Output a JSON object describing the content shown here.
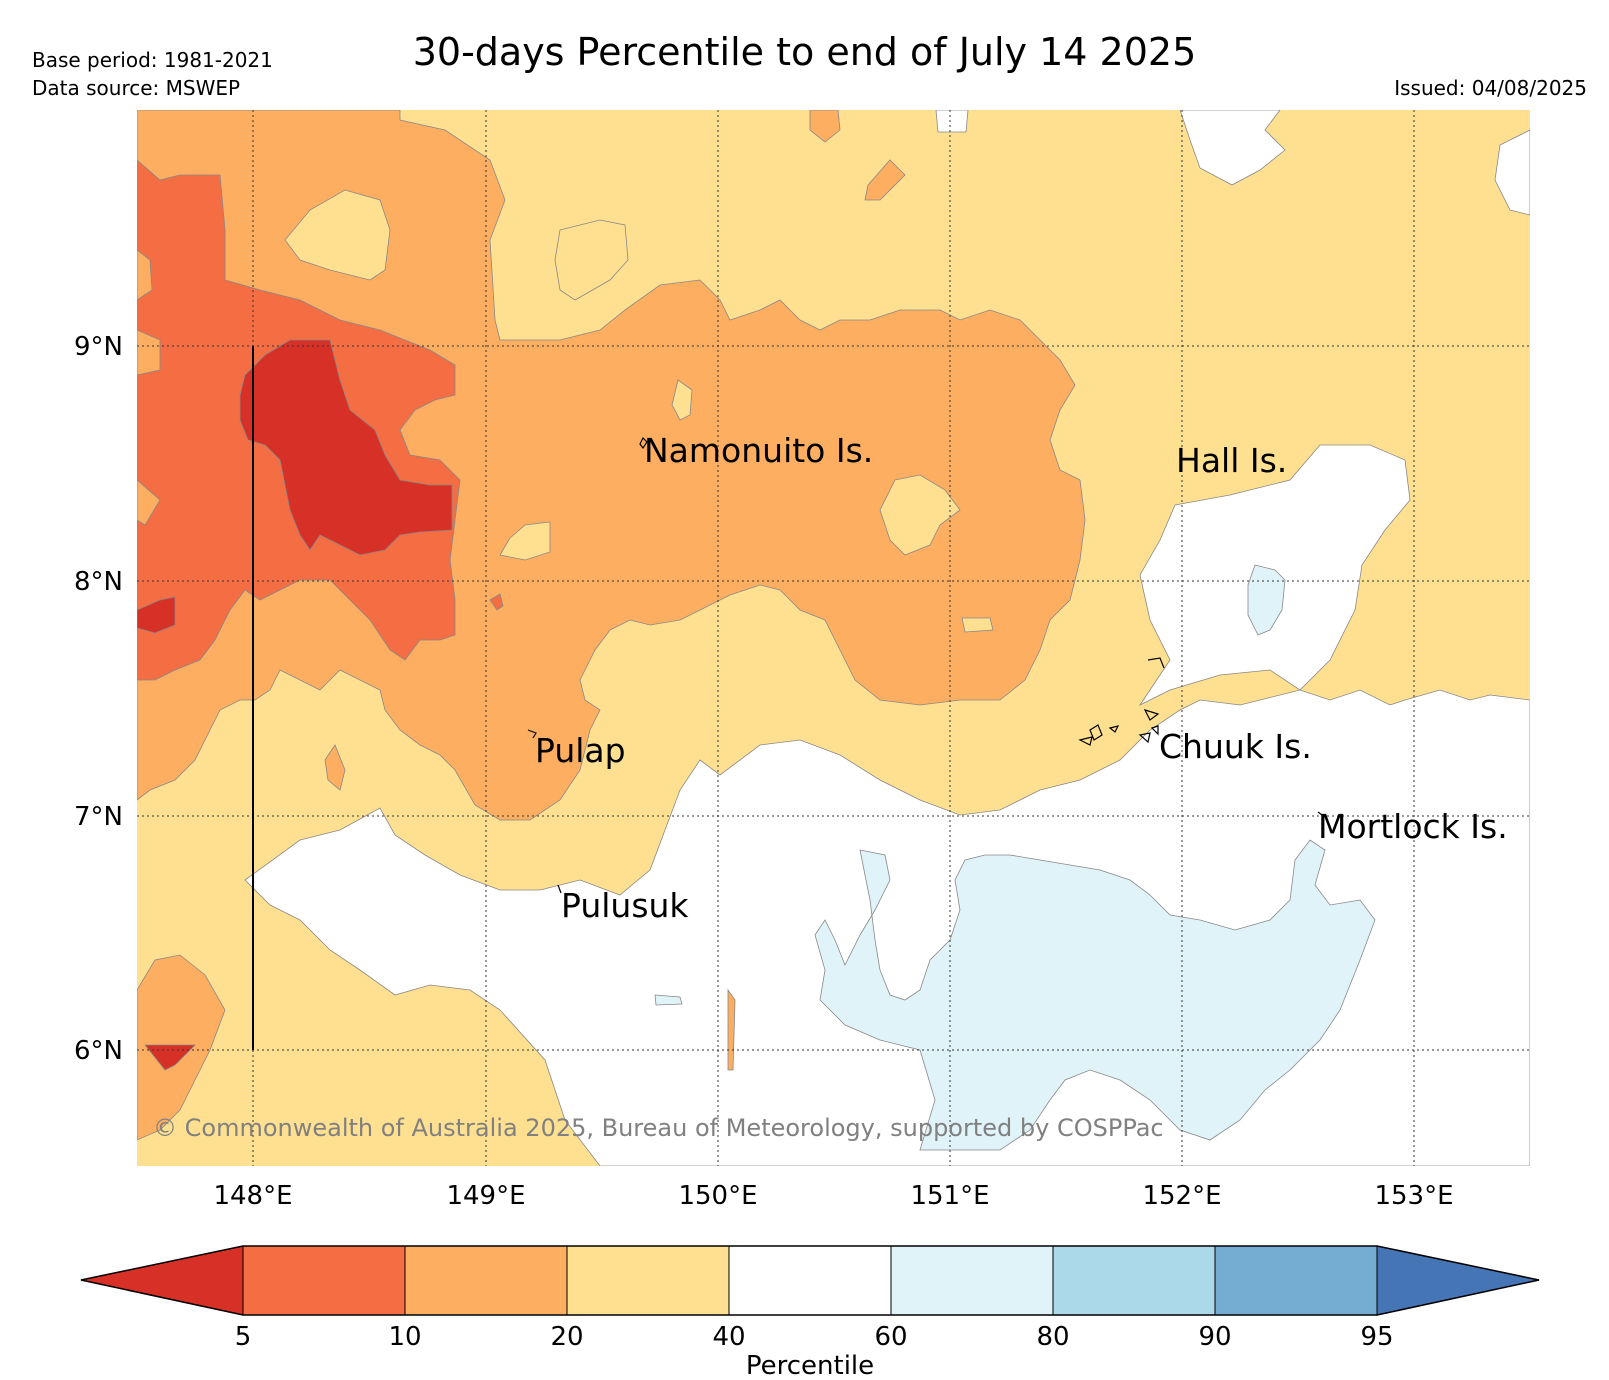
{
  "header": {
    "title": "30-days Percentile to end of July 14 2025",
    "base_period": "Base period: 1981-2021",
    "data_source": "Data source: MSWEP",
    "issued": "Issued: 04/08/2025"
  },
  "map": {
    "lon_range": [
      147.5,
      153.5
    ],
    "lat_range": [
      5.5,
      10.0
    ],
    "lon_ticks": [
      "148°E",
      "149°E",
      "150°E",
      "151°E",
      "152°E",
      "153°E"
    ],
    "lat_ticks": [
      "9°N",
      "8°N",
      "7°N",
      "6°N"
    ],
    "gridlines": true,
    "places": [
      {
        "name": "Namonuito Is.",
        "lon": 149.67,
        "lat": 8.6
      },
      {
        "name": "Hall Is.",
        "lon": 151.97,
        "lat": 8.55
      },
      {
        "name": "Pulap",
        "lon": 149.2,
        "lat": 7.3
      },
      {
        "name": "Chuuk Is.",
        "lon": 151.85,
        "lat": 7.35
      },
      {
        "name": "Mortlock Is.",
        "lon": 152.6,
        "lat": 6.95
      },
      {
        "name": "Pulusuk",
        "lon": 149.32,
        "lat": 6.65
      }
    ],
    "copyright": "© Commonwealth of Australia 2025, Bureau of Meteorology, supported by COSPPac"
  },
  "colorbar": {
    "label": "Percentile",
    "ticks": [
      "5",
      "10",
      "20",
      "40",
      "60",
      "80",
      "90",
      "95"
    ],
    "colors": [
      "#d73027",
      "#f46d43",
      "#fdae61",
      "#fee090",
      "#ffffff",
      "#e0f3f8",
      "#abd9e9",
      "#74add1",
      "#4575b4"
    ],
    "extend": "both"
  }
}
